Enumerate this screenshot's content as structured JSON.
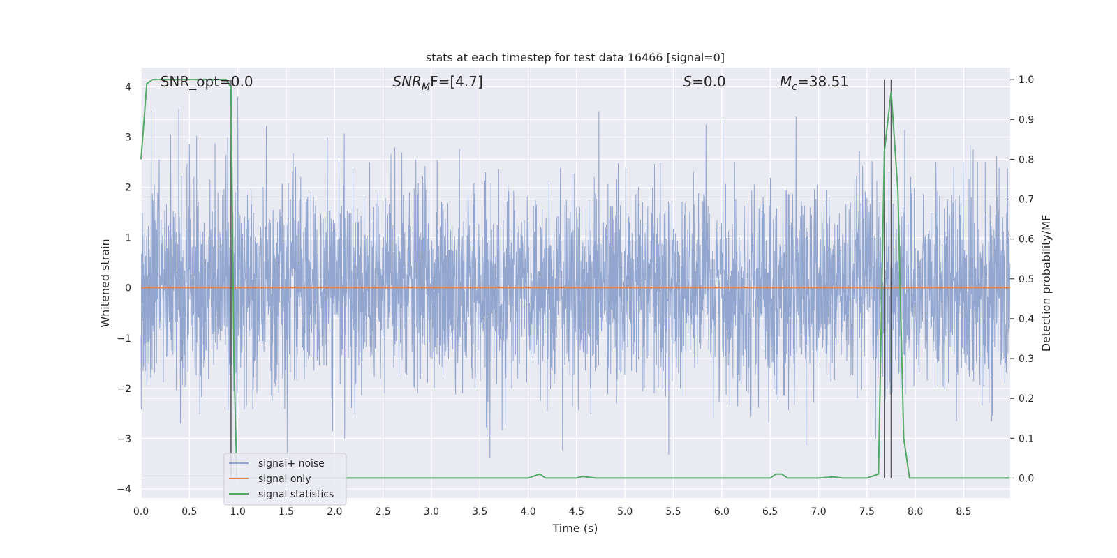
{
  "chart_data": {
    "type": "line",
    "title": "stats at each timestep for test data 16466 [signal=0]",
    "xlabel": "Time (s)",
    "ylabel_left": "Whitened strain",
    "ylabel_right": "Detection probability/MF",
    "xlim": [
      0.0,
      8.98
    ],
    "ylim_left": [
      -4.18,
      4.38
    ],
    "ylim_right": [
      -0.05,
      1.03
    ],
    "x_ticks": [
      "0.0",
      "0.5",
      "1.0",
      "1.5",
      "2.0",
      "2.5",
      "3.0",
      "3.5",
      "4.0",
      "4.5",
      "5.0",
      "5.5",
      "6.0",
      "6.5",
      "7.0",
      "7.5",
      "8.0",
      "8.5"
    ],
    "x_tick_values": [
      0.0,
      0.5,
      1.0,
      1.5,
      2.0,
      2.5,
      3.0,
      3.5,
      4.0,
      4.5,
      5.0,
      5.5,
      6.0,
      6.5,
      7.0,
      7.5,
      8.0,
      8.5
    ],
    "y_ticks_left": [
      "4",
      "3",
      "2",
      "1",
      "0",
      "−1",
      "−2",
      "−3",
      "−4"
    ],
    "y_tick_values_left": [
      4,
      3,
      2,
      1,
      0,
      -1,
      -2,
      -3,
      -4
    ],
    "y_ticks_right": [
      "1.0",
      "0.9",
      "0.8",
      "0.7",
      "0.6",
      "0.5",
      "0.4",
      "0.3",
      "0.2",
      "0.1",
      "0.0"
    ],
    "y_tick_values_right": [
      1.0,
      0.9,
      0.8,
      0.7,
      0.6,
      0.5,
      0.4,
      0.3,
      0.2,
      0.1,
      0.0
    ],
    "grid": true,
    "legend_position": "lower-left",
    "annotations": [
      {
        "text": "SNR_opt=0.0",
        "x": 0.2,
        "y": 4.1
      },
      {
        "text_main": "SNR",
        "text_sub": "M",
        "text_rest": "F=[4.7]",
        "x": 2.6,
        "y": 4.1
      },
      {
        "text_main": "S",
        "text_rest": "=0.0",
        "x": 5.6,
        "y": 4.1
      },
      {
        "text_main": "M",
        "text_sub": "c",
        "text_rest": "=38.51",
        "x": 6.6,
        "y": 4.1
      }
    ],
    "vertical_lines": [
      0.93,
      7.68,
      7.75
    ],
    "series": [
      {
        "name": "signal+ noise",
        "color": "#92a6cf",
        "axis": "left",
        "kind": "noise",
        "sample_rate_hz": 400,
        "std": 1.0,
        "min": -3.8,
        "max": 3.95
      },
      {
        "name": "signal only",
        "color": "#dd8452",
        "axis": "left",
        "x": [
          0.0,
          8.98
        ],
        "values": [
          0.0,
          0.0
        ]
      },
      {
        "name": "signal statistics",
        "color": "#55a868",
        "axis": "right",
        "x": [
          0.0,
          0.06,
          0.12,
          0.25,
          0.5,
          0.75,
          0.88,
          0.93,
          0.96,
          0.99,
          1.1,
          1.5,
          2.0,
          2.5,
          3.0,
          3.5,
          4.0,
          4.06,
          4.12,
          4.18,
          4.3,
          4.5,
          4.56,
          4.7,
          5.0,
          5.5,
          6.0,
          6.5,
          6.56,
          6.62,
          6.68,
          7.0,
          7.15,
          7.25,
          7.5,
          7.62,
          7.68,
          7.75,
          7.82,
          7.88,
          7.94,
          8.0,
          8.5,
          8.98
        ],
        "values": [
          0.8,
          0.99,
          1.0,
          1.0,
          1.0,
          1.0,
          1.0,
          0.98,
          0.3,
          0.0,
          0.0,
          0.0,
          0.0,
          0.0,
          0.0,
          0.0,
          0.0,
          0.005,
          0.01,
          0.0,
          0.0,
          0.0,
          0.004,
          0.0,
          0.0,
          0.0,
          0.0,
          0.0,
          0.01,
          0.01,
          0.0,
          0.0,
          0.003,
          0.0,
          0.0,
          0.01,
          0.82,
          0.97,
          0.72,
          0.1,
          0.0,
          0.0,
          0.0,
          0.0
        ]
      }
    ]
  }
}
